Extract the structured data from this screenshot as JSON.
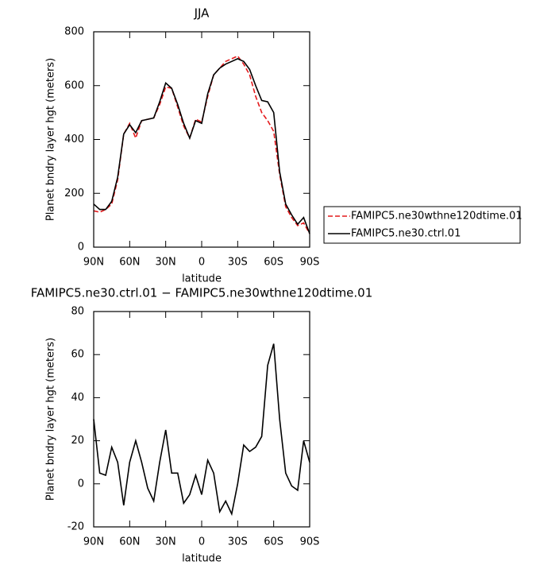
{
  "chart_data": [
    {
      "type": "line",
      "title": "JJA",
      "xlabel": "latitude",
      "ylabel": "Planet bndry layer hgt (meters)",
      "x": [
        90,
        85,
        80,
        75,
        70,
        65,
        60,
        55,
        50,
        45,
        40,
        35,
        30,
        25,
        20,
        15,
        10,
        5,
        0,
        -5,
        -10,
        -15,
        -20,
        -25,
        -30,
        -35,
        -40,
        -45,
        -50,
        -55,
        -60,
        -65,
        -70,
        -75,
        -80,
        -85,
        -90
      ],
      "xlim": [
        90,
        -90
      ],
      "xticks": [
        {
          "value": 90,
          "label": "90N"
        },
        {
          "value": 60,
          "label": "60N"
        },
        {
          "value": 30,
          "label": "30N"
        },
        0,
        {
          "value": -30,
          "label": "30S"
        },
        {
          "value": -60,
          "label": "60S"
        },
        {
          "value": -90,
          "label": "90S"
        }
      ],
      "ylim": [
        0,
        800
      ],
      "yticks": [
        0,
        200,
        400,
        600,
        800
      ],
      "legend": "outside-right",
      "series": [
        {
          "name": "FAMIPC5.ne30wthne120dtime.01",
          "color": "#e41a1c",
          "dash": true,
          "values": [
            135,
            130,
            140,
            160,
            250,
            420,
            460,
            405,
            470,
            475,
            480,
            530,
            595,
            590,
            520,
            450,
            405,
            475,
            465,
            560,
            640,
            665,
            690,
            700,
            710,
            680,
            640,
            560,
            500,
            470,
            430,
            270,
            150,
            110,
            80,
            90,
            50
          ]
        },
        {
          "name": "FAMIPC5.ne30.ctrl.01",
          "color": "#000000",
          "dash": false,
          "values": [
            160,
            140,
            140,
            170,
            260,
            420,
            455,
            425,
            470,
            475,
            480,
            540,
            610,
            590,
            530,
            460,
            405,
            470,
            460,
            570,
            640,
            665,
            680,
            690,
            700,
            690,
            660,
            600,
            545,
            540,
            500,
            280,
            160,
            120,
            85,
            110,
            50
          ]
        }
      ]
    },
    {
      "type": "line",
      "title": "FAMIPC5.ne30.ctrl.01 − FAMIPC5.ne30wthne120dtime.01",
      "xlabel": "latitude",
      "ylabel": "Planet bndry layer hgt (meters)",
      "x": [
        90,
        85,
        80,
        75,
        70,
        65,
        60,
        55,
        50,
        45,
        40,
        35,
        30,
        25,
        20,
        15,
        10,
        5,
        0,
        -5,
        -10,
        -15,
        -20,
        -25,
        -30,
        -35,
        -40,
        -45,
        -50,
        -55,
        -60,
        -65,
        -70,
        -75,
        -80,
        -85,
        -90
      ],
      "xlim": [
        90,
        -90
      ],
      "xticks": [
        {
          "value": 90,
          "label": "90N"
        },
        {
          "value": 60,
          "label": "60N"
        },
        {
          "value": 30,
          "label": "30N"
        },
        0,
        {
          "value": -30,
          "label": "30S"
        },
        {
          "value": -60,
          "label": "60S"
        },
        {
          "value": -90,
          "label": "90S"
        }
      ],
      "ylim": [
        -20,
        80
      ],
      "yticks": [
        -20,
        0,
        20,
        40,
        60,
        80
      ],
      "series": [
        {
          "color": "#000000",
          "dash": false,
          "values": [
            30,
            5,
            4,
            17,
            10,
            -10,
            10,
            20,
            10,
            -2,
            -8,
            10,
            25,
            5,
            5,
            -9,
            -5,
            4,
            -5,
            11,
            5,
            -13,
            -8,
            -14,
            0,
            18,
            15,
            17,
            22,
            55,
            65,
            30,
            5,
            -1,
            -3,
            20,
            10
          ]
        }
      ]
    }
  ]
}
